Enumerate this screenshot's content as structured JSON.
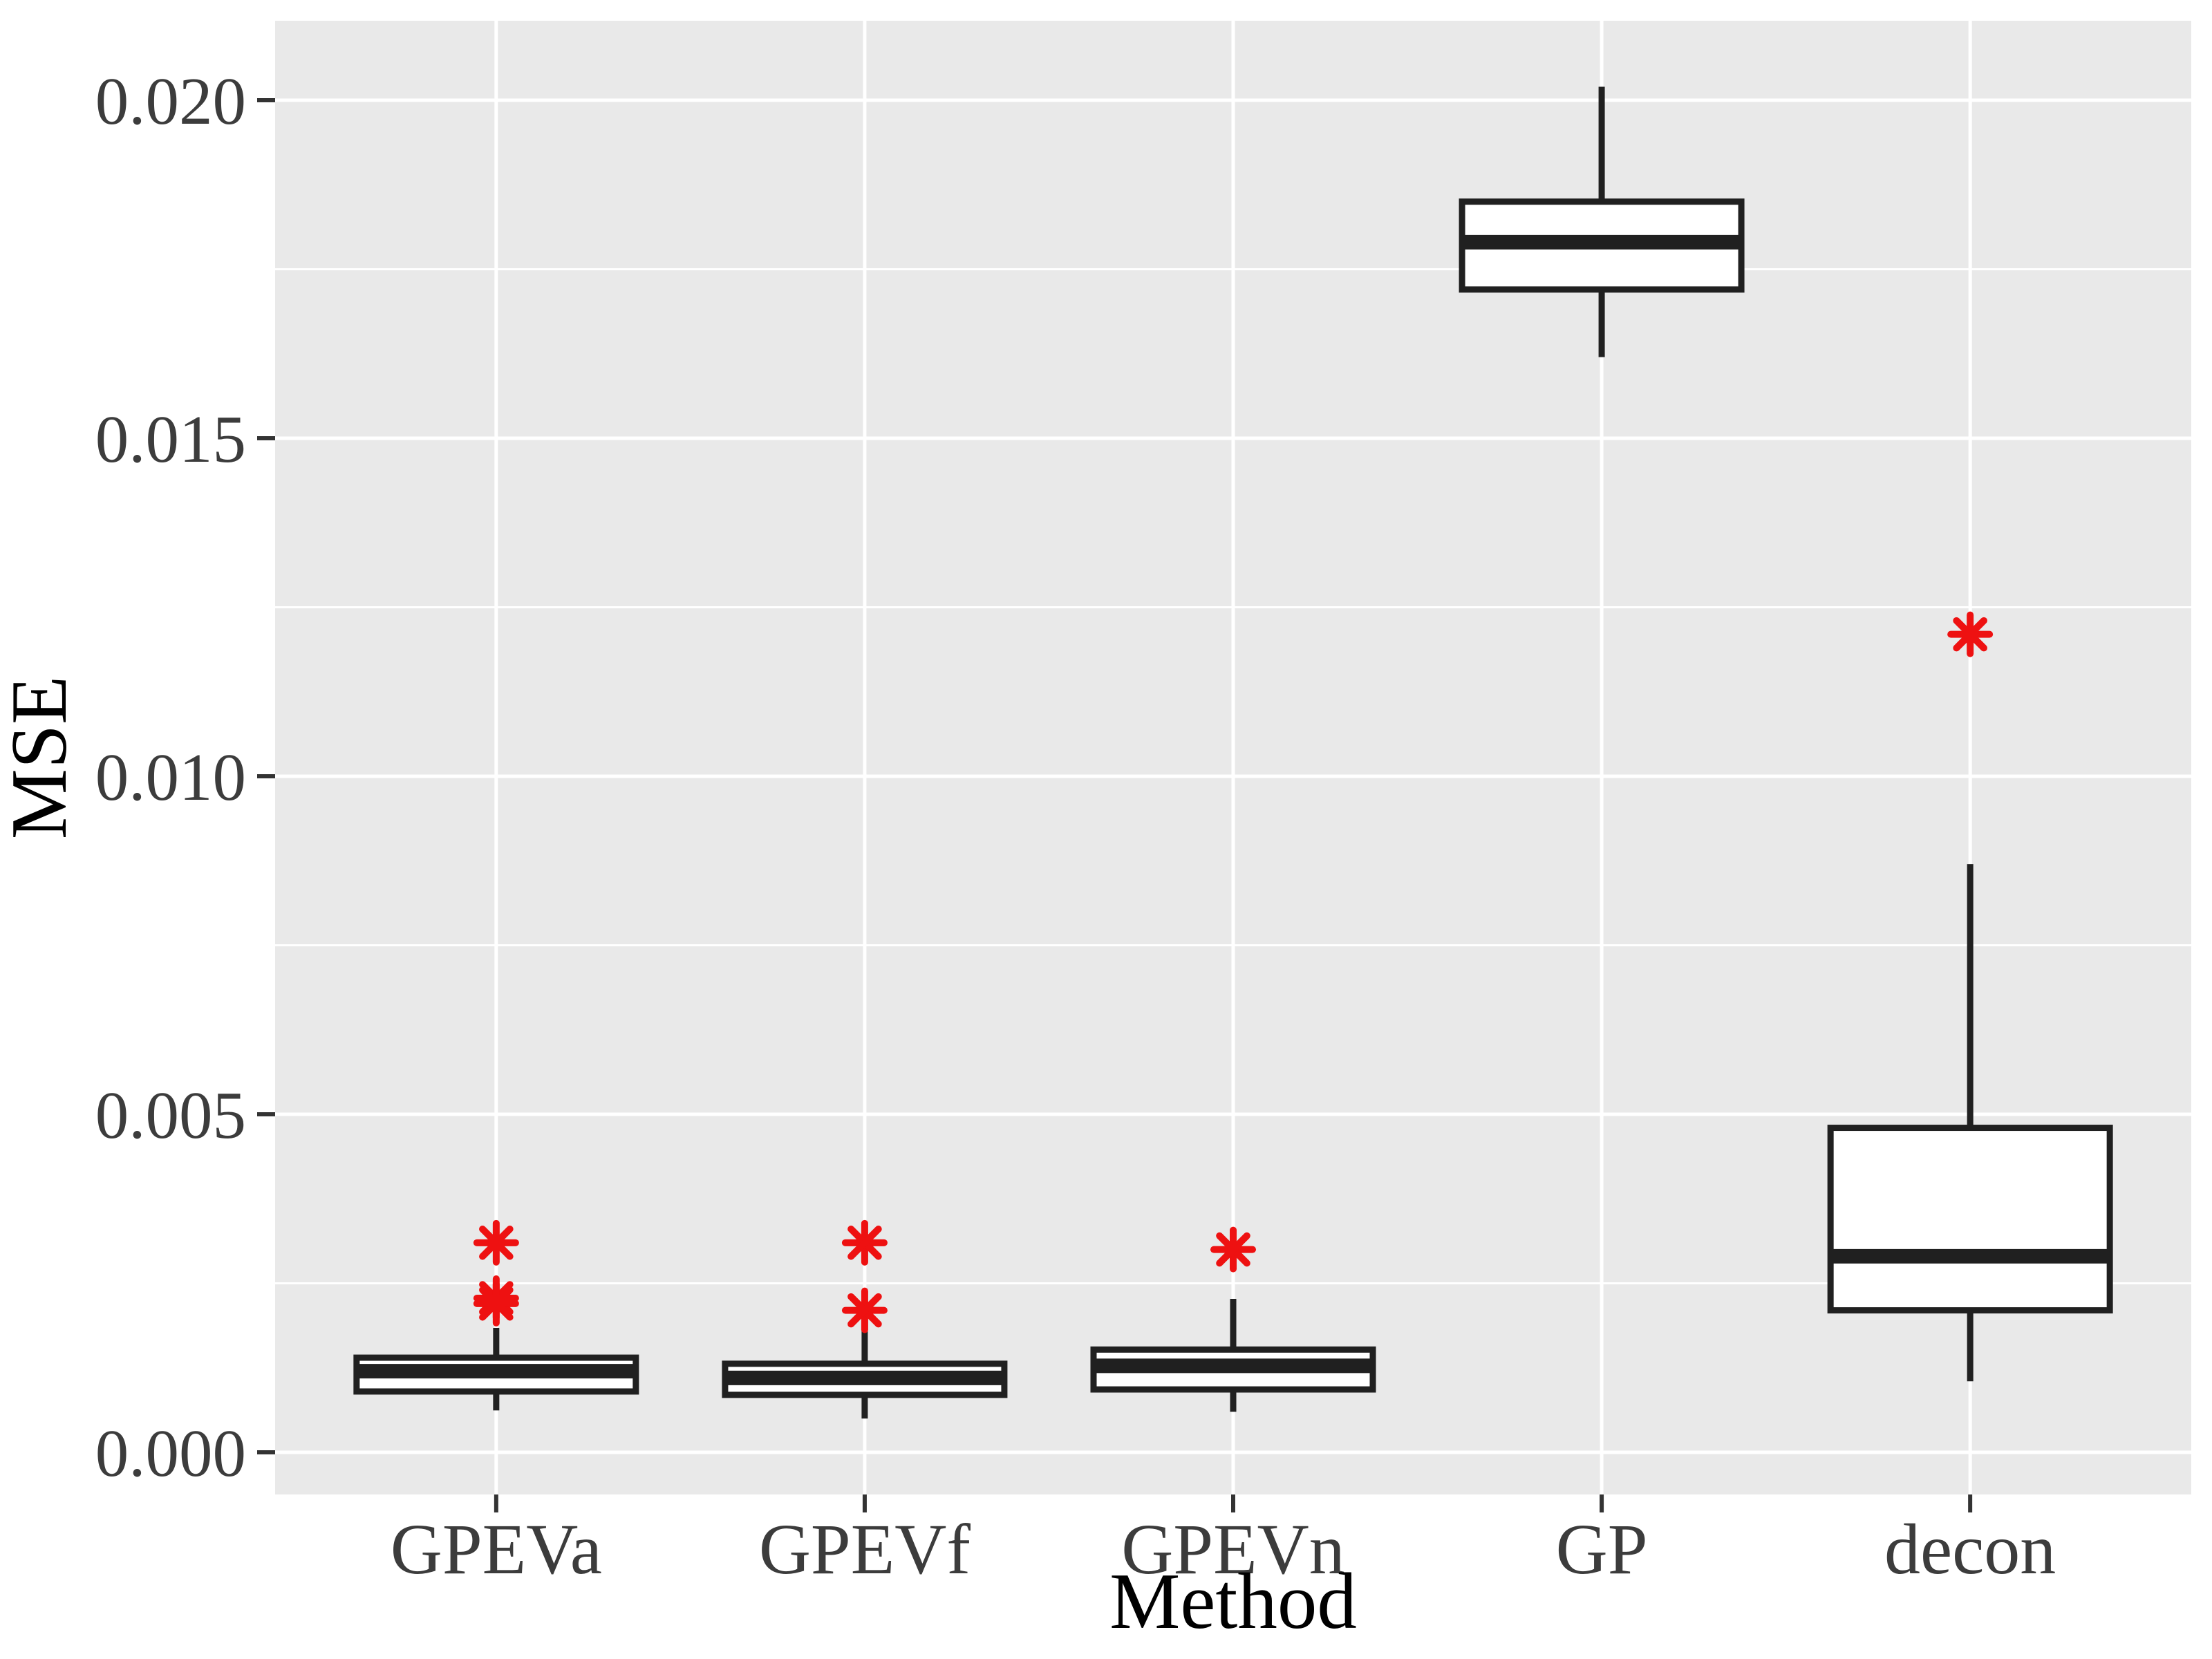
{
  "figure": {
    "background": "#ffffff",
    "panel_background": "#e9e9e9",
    "grid_color": "#ffffff",
    "box_stroke_color": "#202020",
    "box_fill_color": "#ffffff",
    "outlier_color": "#ee1111",
    "tick_mark_color": "#333333",
    "axis_text_color": "#3c3c3c",
    "axis_title_color": "#000000"
  },
  "chart_data": {
    "type": "boxplot",
    "title": "",
    "xlabel": "Method",
    "ylabel": "MSE",
    "categories": [
      "GPEVa",
      "GPEVf",
      "GPEVn",
      "GP",
      "decon"
    ],
    "y_ticks": [
      0.0,
      0.005,
      0.01,
      0.015,
      0.02
    ],
    "y_tick_labels": [
      "0.000",
      "0.005",
      "0.010",
      "0.015",
      "0.020"
    ],
    "y_minor_ticks": [
      0.0025,
      0.0075,
      0.0125,
      0.0175
    ],
    "ylim": [
      -0.0006,
      0.0212
    ],
    "grid": true,
    "legend": false,
    "boxes": [
      {
        "category": "GPEVa",
        "whisker_low": 0.00062,
        "q1": 0.0009,
        "median": 0.0012,
        "q3": 0.0014,
        "whisker_high": 0.00184,
        "outliers": [
          0.0031,
          0.00228,
          0.0022
        ]
      },
      {
        "category": "GPEVf",
        "whisker_low": 0.0005,
        "q1": 0.00085,
        "median": 0.0011,
        "q3": 0.00131,
        "whisker_high": 0.00203,
        "outliers": [
          0.0031,
          0.0021
        ]
      },
      {
        "category": "GPEVn",
        "whisker_low": 0.0006,
        "q1": 0.00093,
        "median": 0.00128,
        "q3": 0.00152,
        "whisker_high": 0.00227,
        "outliers": [
          0.003
        ]
      },
      {
        "category": "GP",
        "whisker_low": 0.0162,
        "q1": 0.0172,
        "median": 0.0179,
        "q3": 0.0185,
        "whisker_high": 0.0202,
        "outliers": []
      },
      {
        "category": "decon",
        "whisker_low": 0.00105,
        "q1": 0.0021,
        "median": 0.0029,
        "q3": 0.0048,
        "whisker_high": 0.0087,
        "outliers": [
          0.0121
        ]
      }
    ]
  }
}
